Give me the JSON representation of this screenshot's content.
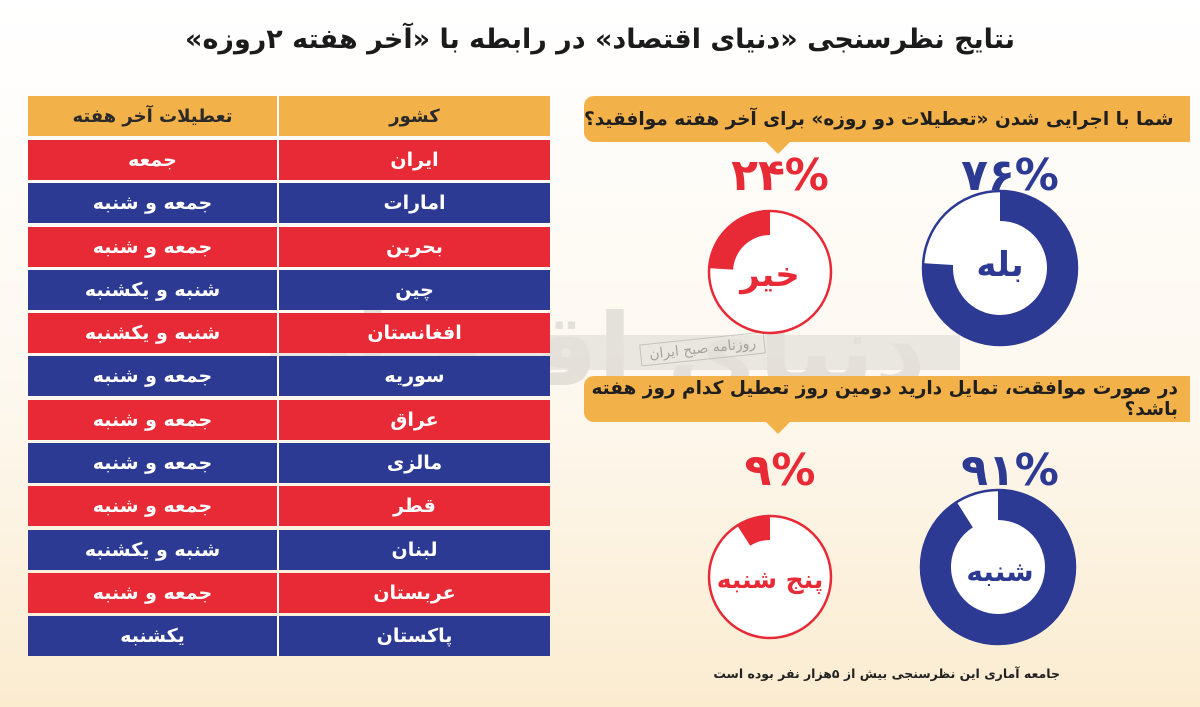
{
  "title": "نتایج نظرسنجی «دنیای اقتصاد» در رابطه با «آخر هفته ۲روزه»",
  "table": {
    "headers": {
      "country": "کشور",
      "weekend": "تعطیلات آخر هفته"
    },
    "rows": [
      {
        "country": "ایران",
        "weekend": "جمعه",
        "color": "red"
      },
      {
        "country": "امارات",
        "weekend": "جمعه و شنبه",
        "color": "blue"
      },
      {
        "country": "بحرین",
        "weekend": "جمعه و شنبه",
        "color": "red"
      },
      {
        "country": "چین",
        "weekend": "شنبه و یکشنبه",
        "color": "blue"
      },
      {
        "country": "افغانستان",
        "weekend": "شنبه و یکشنبه",
        "color": "red"
      },
      {
        "country": "سوریه",
        "weekend": "جمعه و شنبه",
        "color": "blue"
      },
      {
        "country": "عراق",
        "weekend": "جمعه و شنبه",
        "color": "red"
      },
      {
        "country": "مالزی",
        "weekend": "جمعه و شنبه",
        "color": "blue"
      },
      {
        "country": "قطر",
        "weekend": "جمعه و شنبه",
        "color": "red"
      },
      {
        "country": "لبنان",
        "weekend": "شنبه و یکشنبه",
        "color": "blue"
      },
      {
        "country": "عربستان",
        "weekend": "جمعه و شنبه",
        "color": "red"
      },
      {
        "country": "پاکستان",
        "weekend": "یکشنبه",
        "color": "blue"
      }
    ]
  },
  "colors": {
    "blue": "#2c3a93",
    "red": "#e72a36",
    "orange": "#f3b149"
  },
  "watermark": "دنیای اقتصاد",
  "watermark_sub": "روزنامه صبح ایران",
  "footnote": "جامعه آماری این نظرسنجی بیش از ۵هزار نفر بوده است",
  "chart_data": [
    {
      "type": "pie",
      "title": "شما با اجرایی شدن «تعطیلات دو روزه» برای آخر هفته موافقید؟",
      "slices": [
        {
          "label": "بله",
          "value": 76,
          "display": "۷۶%",
          "color": "#2c3a93"
        },
        {
          "label": "خیر",
          "value": 24,
          "display": "۲۴%",
          "color": "#e72a36"
        }
      ]
    },
    {
      "type": "pie",
      "title": "در صورت موافقت، تمایل دارید دومین روز تعطیل کدام روز هفته باشد؟",
      "slices": [
        {
          "label": "شنبه",
          "value": 91,
          "display": "۹۱%",
          "color": "#2c3a93"
        },
        {
          "label": "پنج شنبه",
          "value": 9,
          "display": "۹%",
          "color": "#e72a36"
        }
      ]
    }
  ]
}
